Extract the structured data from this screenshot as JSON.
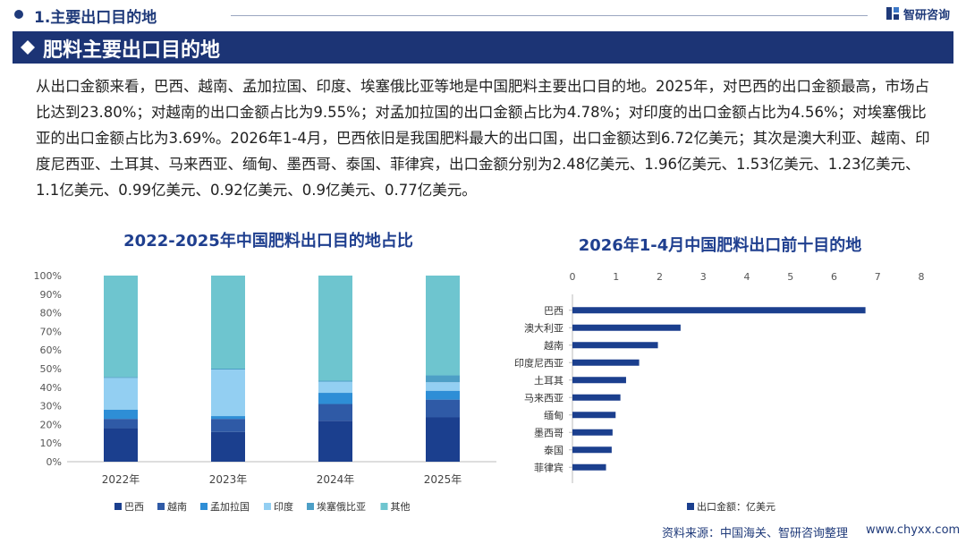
{
  "header": {
    "section": "1.主要出口目的地",
    "logo": "智研咨询"
  },
  "title": "肥料主要出口目的地",
  "paragraph": "从出口金额来看，巴西、越南、孟加拉国、印度、埃塞俄比亚等地是中国肥料主要出口目的地。2025年，对巴西的出口金额最高，市场占比达到23.80%；对越南的出口金额占比为9.55%；对孟加拉国的出口金额占比为4.78%；对印度的出口金额占比为4.56%；对埃塞俄比亚的出口金额占比为3.69%。2026年1-4月，巴西依旧是我国肥料最大的出口国，出口金额达到6.72亿美元；其次是澳大利亚、越南、印度尼西亚、土耳其、马来西亚、缅甸、墨西哥、泰国、菲律宾，出口金额分别为2.48亿美元、1.96亿美元、1.53亿美元、1.23亿美元、1.1亿美元、0.99亿美元、0.92亿美元、0.9亿美元、0.77亿美元。",
  "source": {
    "text": "资料来源：中国海关、智研咨询整理",
    "url": "www.chyxx.com"
  },
  "chart_data": [
    {
      "type": "bar",
      "stacked": true,
      "horizontal": false,
      "title": "2022-2025年中国肥料出口目的地占比",
      "categories": [
        "2022年",
        "2023年",
        "2024年",
        "2025年"
      ],
      "series": [
        {
          "name": "巴西",
          "color": "#1b3f8e",
          "values": [
            18,
            16,
            22,
            23.8
          ]
        },
        {
          "name": "越南",
          "color": "#2f5aa6",
          "values": [
            5,
            7,
            9,
            9.55
          ]
        },
        {
          "name": "孟加拉国",
          "color": "#2e8ed6",
          "values": [
            5,
            1.5,
            6,
            4.78
          ]
        },
        {
          "name": "印度",
          "color": "#93cff2",
          "values": [
            17,
            25,
            6,
            4.56
          ]
        },
        {
          "name": "埃塞俄比亚",
          "color": "#4d9fc6",
          "values": [
            0.5,
            0.5,
            0.5,
            3.69
          ]
        },
        {
          "name": "其他",
          "color": "#6ec5cf",
          "values": [
            54.5,
            50,
            56.5,
            53.62
          ]
        }
      ],
      "ylim": [
        0,
        100
      ],
      "yticks": [
        {
          "value": 0,
          "label": "0%"
        },
        {
          "value": 10,
          "label": "10%"
        },
        {
          "value": 20,
          "label": "20%"
        },
        {
          "value": 30,
          "label": "30%"
        },
        {
          "value": 40,
          "label": "40%"
        },
        {
          "value": 50,
          "label": "50%"
        },
        {
          "value": 60,
          "label": "60%"
        },
        {
          "value": 70,
          "label": "70%"
        },
        {
          "value": 80,
          "label": "80%"
        },
        {
          "value": 90,
          "label": "90%"
        },
        {
          "value": 100,
          "label": "100%"
        }
      ],
      "grid": false,
      "legend": "bottom"
    },
    {
      "type": "bar",
      "stacked": false,
      "horizontal": true,
      "title": "2026年1-4月中国肥料出口前十目的地",
      "categories": [
        "巴西",
        "澳大利亚",
        "越南",
        "印度尼西亚",
        "土耳其",
        "马来西亚",
        "缅甸",
        "墨西哥",
        "泰国",
        "菲律宾"
      ],
      "series": [
        {
          "name": "出口金额：亿美元",
          "color": "#1b3f8e",
          "values": [
            6.72,
            2.48,
            1.96,
            1.53,
            1.23,
            1.1,
            0.99,
            0.92,
            0.9,
            0.77
          ]
        }
      ],
      "xlim": [
        0,
        8
      ],
      "xticks": [
        0,
        1,
        2,
        3,
        4,
        5,
        6,
        7,
        8
      ],
      "grid": false,
      "legend": "bottom"
    }
  ]
}
